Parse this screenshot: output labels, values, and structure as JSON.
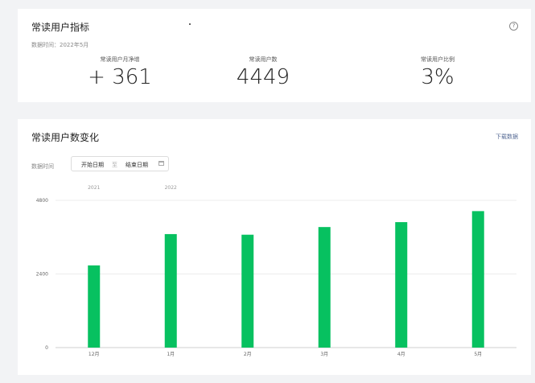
{
  "metrics_card": {
    "title": "常读用户指标",
    "data_time": "数据时间：2022年5月",
    "help_icon": "question-circle-icon",
    "metrics": [
      {
        "label": "常读用户月净增",
        "value": "+ 361"
      },
      {
        "label": "常读用户数",
        "value": "4449"
      },
      {
        "label": "常读用户比例",
        "value": "3%"
      }
    ]
  },
  "trend_card": {
    "title": "常读用户数变化",
    "download_label": "下载数据",
    "filter_label": "数据时间",
    "start_placeholder": "开始日期",
    "range_separator": "至",
    "end_placeholder": "结束日期",
    "calendar_icon": "calendar-icon"
  },
  "chart_data": {
    "type": "bar",
    "color": "#07c160",
    "categories": [
      "12月",
      "1月",
      "2月",
      "3月",
      "4月",
      "5月"
    ],
    "values": [
      2680,
      3700,
      3680,
      3930,
      4090,
      4449
    ],
    "year_labels": [
      {
        "label": "2021",
        "category_index": 0
      },
      {
        "label": "2022",
        "category_index": 1
      }
    ],
    "ylim": [
      0,
      4800
    ],
    "yticks": [
      0,
      2400,
      4800
    ],
    "grid": true,
    "title": "",
    "xlabel": "",
    "ylabel": ""
  }
}
